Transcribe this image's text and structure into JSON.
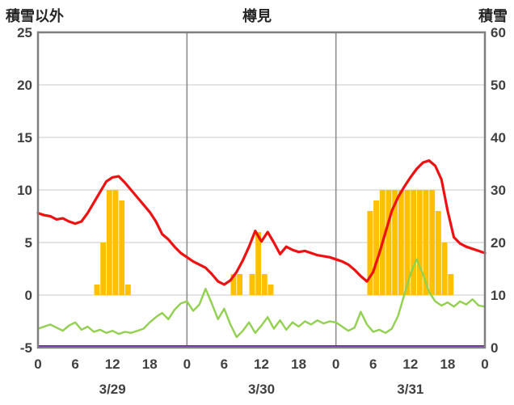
{
  "chart_data": {
    "type": "combo",
    "title": "樽見",
    "left_axis": {
      "label": "積雪以外",
      "min": -5,
      "max": 25,
      "tick_interval": 5,
      "tick_labels": [
        "25",
        "20",
        "15",
        "10",
        "5",
        "0",
        "-5"
      ]
    },
    "right_axis": {
      "label": "積雪",
      "min": 0,
      "max": 60,
      "tick_interval": 10,
      "tick_labels": [
        "60",
        "50",
        "40",
        "30",
        "20",
        "10",
        "0"
      ]
    },
    "x": {
      "hours_total": 72,
      "tick_step_hours": 6,
      "tick_labels": [
        "0",
        "6",
        "12",
        "18",
        "0",
        "6",
        "12",
        "18",
        "0",
        "6",
        "12",
        "18",
        "0"
      ],
      "day_labels": [
        "3/29",
        "3/30",
        "3/31"
      ],
      "day_boundaries": [
        24,
        48
      ]
    },
    "grid": {
      "horizontal": true,
      "vertical_day_lines": true
    },
    "legend": "none",
    "colors": {
      "grid": "#c9c9c9",
      "day_line": "#8c8c8c",
      "border": "#7f7f7f",
      "text": "#404040"
    },
    "series": [
      {
        "name": "precipitation-bars",
        "type": "bar",
        "axis": "left",
        "color": "#FFC000",
        "baseline": 0,
        "values": [
          0,
          0,
          0,
          0,
          0,
          0,
          0,
          0,
          0,
          1,
          5,
          10,
          10,
          9,
          1,
          0,
          0,
          0,
          0,
          0,
          0,
          0,
          0,
          0,
          0,
          0,
          0,
          0,
          0,
          0,
          0,
          2,
          2,
          0,
          2,
          6,
          2,
          1,
          0,
          0,
          0,
          0,
          0,
          0,
          0,
          0,
          0,
          0,
          0,
          0,
          0,
          0,
          0,
          8,
          9,
          10,
          10,
          10,
          10,
          10,
          10,
          10,
          10,
          10,
          8,
          5,
          2,
          0,
          0,
          0,
          0,
          0
        ]
      },
      {
        "name": "snow-depth-line",
        "type": "line",
        "axis": "right",
        "color": "#7030A0",
        "constant_value": 0
      },
      {
        "name": "green-line",
        "type": "line",
        "axis": "left",
        "color": "#92D050",
        "values": [
          -3.2,
          -3.0,
          -2.8,
          -3.1,
          -3.4,
          -2.9,
          -2.6,
          -3.3,
          -3.0,
          -3.5,
          -3.3,
          -3.6,
          -3.4,
          -3.7,
          -3.5,
          -3.6,
          -3.4,
          -3.2,
          -2.6,
          -2.1,
          -1.7,
          -2.3,
          -1.4,
          -0.8,
          -0.6,
          -1.5,
          -0.9,
          0.6,
          -0.8,
          -2.3,
          -1.3,
          -2.8,
          -4.0,
          -3.4,
          -2.6,
          -3.6,
          -2.9,
          -2.1,
          -3.2,
          -2.4,
          -3.3,
          -2.6,
          -3.0,
          -2.5,
          -2.8,
          -2.4,
          -2.7,
          -2.5,
          -2.6,
          -3.0,
          -3.4,
          -3.1,
          -1.6,
          -2.8,
          -3.5,
          -3.3,
          -3.6,
          -3.2,
          -2.0,
          0.0,
          2.0,
          3.4,
          2.0,
          0.3,
          -0.6,
          -1.0,
          -0.7,
          -1.1,
          -0.6,
          -0.9,
          -0.4,
          -1.0,
          -1.1
        ]
      },
      {
        "name": "red-line",
        "type": "line",
        "axis": "left",
        "color": "#EE1111",
        "values": [
          7.8,
          7.6,
          7.5,
          7.2,
          7.3,
          7.0,
          6.8,
          7.0,
          7.8,
          8.8,
          9.8,
          10.8,
          11.2,
          11.3,
          10.7,
          10.0,
          9.3,
          8.6,
          7.9,
          7.0,
          5.8,
          5.3,
          4.6,
          4.0,
          3.6,
          3.2,
          2.9,
          2.6,
          2.0,
          1.3,
          1.0,
          1.4,
          2.2,
          3.3,
          4.6,
          6.1,
          5.1,
          6.0,
          5.0,
          3.9,
          4.6,
          4.3,
          4.1,
          4.2,
          4.0,
          3.8,
          3.7,
          3.6,
          3.4,
          3.2,
          2.9,
          2.4,
          1.8,
          1.3,
          2.2,
          4.0,
          6.0,
          8.0,
          9.3,
          10.3,
          11.2,
          12.0,
          12.6,
          12.8,
          12.3,
          11.0,
          8.0,
          5.5,
          4.9,
          4.6,
          4.4,
          4.2,
          4.0
        ]
      }
    ]
  }
}
